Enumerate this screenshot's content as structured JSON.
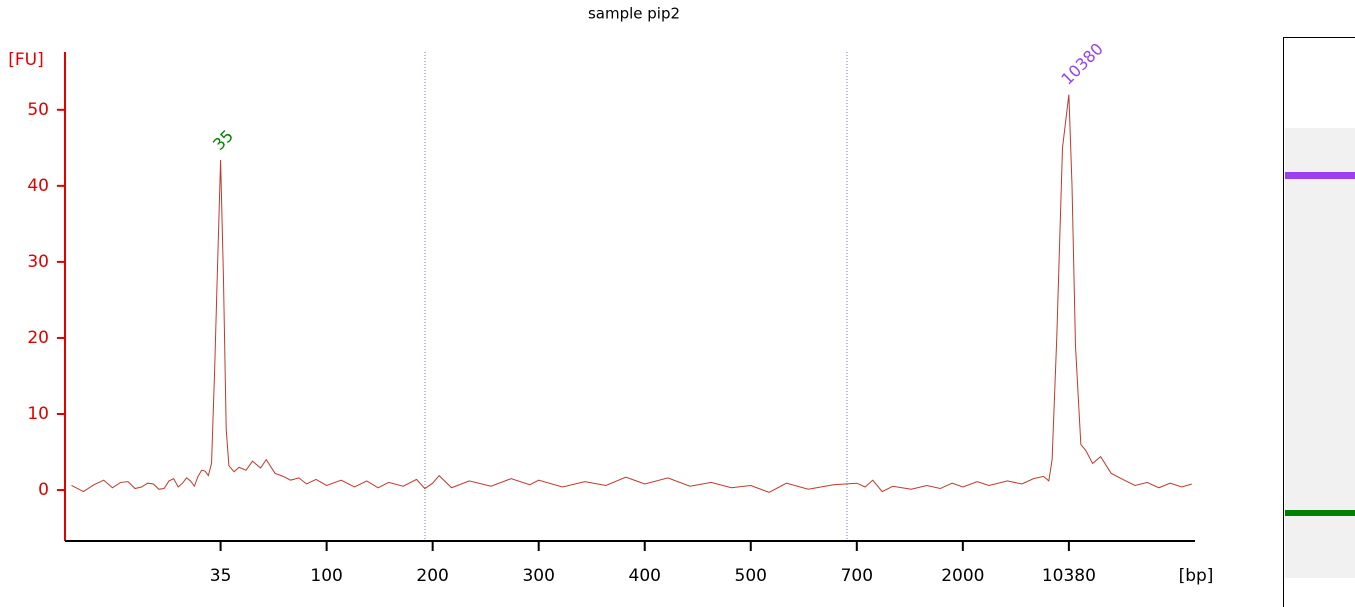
{
  "chart_data": {
    "type": "line",
    "title": "sample pip2",
    "ylabel": "[FU]",
    "xlabel": "[bp]",
    "x": [
      8,
      9,
      10,
      11,
      12,
      13,
      14,
      15,
      16,
      17,
      18,
      19,
      20,
      21,
      22,
      23,
      24,
      25,
      26,
      27,
      28,
      29,
      30,
      31,
      32,
      33,
      34,
      35,
      36,
      37,
      38,
      40,
      42,
      45,
      48,
      52,
      55,
      60,
      65,
      70,
      76,
      82,
      90,
      100,
      110,
      120,
      130,
      140,
      150,
      165,
      180,
      190,
      200,
      205,
      215,
      230,
      250,
      270,
      290,
      300,
      320,
      340,
      360,
      380,
      400,
      420,
      440,
      460,
      480,
      500,
      530,
      560,
      600,
      650,
      700,
      760,
      820,
      900,
      1000,
      1200,
      1400,
      1600,
      1800,
      2000,
      2500,
      3000,
      4000,
      5000,
      6000,
      7000,
      7600,
      8000,
      8600,
      9400,
      10380,
      10900,
      11500,
      12500,
      13500,
      15000,
      17000,
      20000,
      24000,
      29000,
      35000,
      42000,
      50000,
      60000,
      70000
    ],
    "values": [
      0.6,
      -0.2,
      0.7,
      1.3,
      0.3,
      1.0,
      1.1,
      0.2,
      0.4,
      0.9,
      0.8,
      0.1,
      0.2,
      1.2,
      1.5,
      0.4,
      0.9,
      1.6,
      1.2,
      0.5,
      1.8,
      2.6,
      2.5,
      1.9,
      3.5,
      15.8,
      30,
      43.4,
      28,
      8,
      3.2,
      2.4,
      3.0,
      2.6,
      3.8,
      2.9,
      4.0,
      2.2,
      1.8,
      1.3,
      1.6,
      0.8,
      1.4,
      0.6,
      1.3,
      0.4,
      1.2,
      0.3,
      1.0,
      0.5,
      1.4,
      0.2,
      0.9,
      1.9,
      0.3,
      1.2,
      0.5,
      1.5,
      0.7,
      1.3,
      0.4,
      1.1,
      0.6,
      1.7,
      0.8,
      1.6,
      0.5,
      1.0,
      0.3,
      0.6,
      -0.3,
      0.9,
      0.1,
      0.7,
      0.9,
      0.4,
      1.3,
      -0.2,
      0.5,
      0.1,
      0.6,
      0.2,
      0.9,
      0.4,
      1.1,
      0.6,
      1.2,
      0.8,
      1.5,
      1.8,
      1.2,
      4,
      20,
      45,
      52,
      40,
      19,
      6,
      5.2,
      3.5,
      4.4,
      2.2,
      1.4,
      0.6,
      1.0,
      0.3,
      0.9,
      0.4,
      0.8
    ],
    "color": "#c0392b",
    "peaks": [
      {
        "size": 35,
        "color": "#008000"
      },
      {
        "size": 10380,
        "color": "#9b40f0"
      }
    ],
    "xlim": [
      7.5,
      73600
    ],
    "xticks": [
      35,
      100,
      200,
      300,
      400,
      500,
      700,
      2000,
      10380
    ],
    "ylim": [
      -6.7,
      57.6
    ],
    "yticks": [
      0,
      10,
      20,
      30,
      40,
      50
    ],
    "axis_color": "#e00000"
  }
}
